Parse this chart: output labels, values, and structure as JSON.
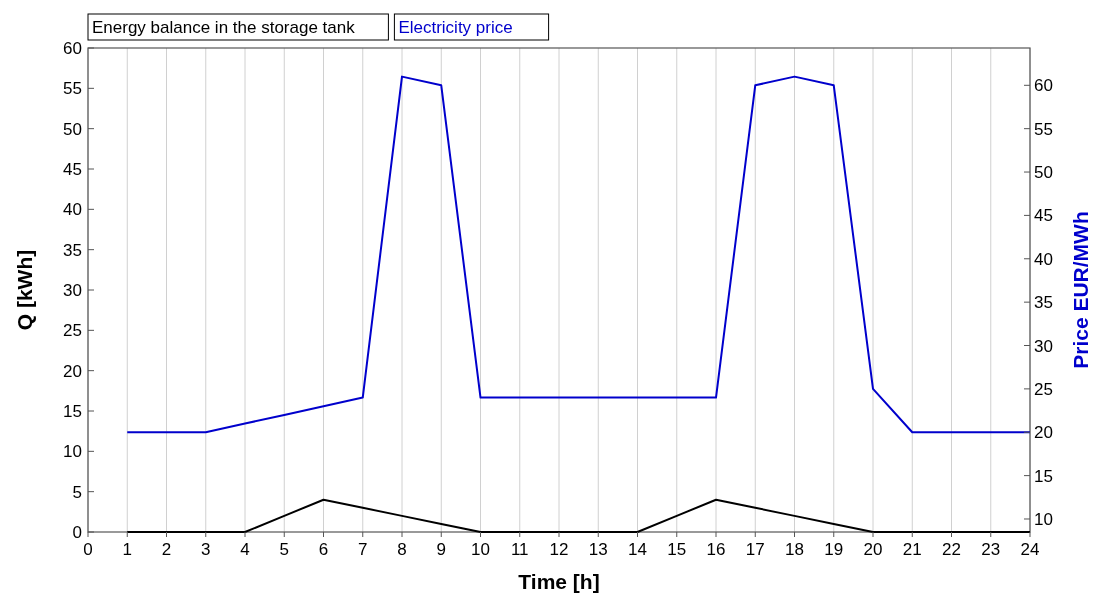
{
  "chart_data": {
    "type": "line",
    "xlabel": "Time [h]",
    "ylabel": "Q [kWh]",
    "y2label": "Price EUR/MWh",
    "x": [
      1,
      2,
      3,
      4,
      5,
      6,
      7,
      8,
      9,
      10,
      11,
      12,
      13,
      14,
      15,
      16,
      17,
      18,
      19,
      20,
      21,
      22,
      23,
      24
    ],
    "series": [
      {
        "name": "Energy balance in the storage tank",
        "color": "#000000",
        "values": [
          0,
          0,
          0,
          0,
          2,
          4,
          3,
          2,
          1,
          0,
          0,
          0,
          0,
          0,
          2,
          4,
          3,
          2,
          1,
          0,
          0,
          0,
          0,
          0
        ]
      },
      {
        "name": "Electricity price",
        "color": "#0000cc",
        "axis": "y2",
        "values": [
          20,
          20,
          20,
          21,
          22,
          23,
          24,
          61,
          60,
          24,
          24,
          24,
          24,
          24,
          24,
          24,
          60,
          61,
          60,
          25,
          20,
          20,
          20,
          20
        ]
      }
    ],
    "xlim": [
      0,
      24
    ],
    "xticks": [
      0,
      1,
      2,
      3,
      4,
      5,
      6,
      7,
      8,
      9,
      10,
      11,
      12,
      13,
      14,
      15,
      16,
      17,
      18,
      19,
      20,
      21,
      22,
      23,
      24
    ],
    "ylim": [
      0,
      60
    ],
    "yticks": [
      0,
      5,
      10,
      15,
      20,
      25,
      30,
      35,
      40,
      45,
      50,
      55,
      60
    ],
    "y2lim": [
      8.5,
      64.3
    ],
    "y2ticks": [
      10,
      15,
      20,
      25,
      30,
      35,
      40,
      45,
      50,
      55,
      60
    ],
    "grid": "x",
    "legend": "top left",
    "marker": "none",
    "line_style": "solid"
  }
}
